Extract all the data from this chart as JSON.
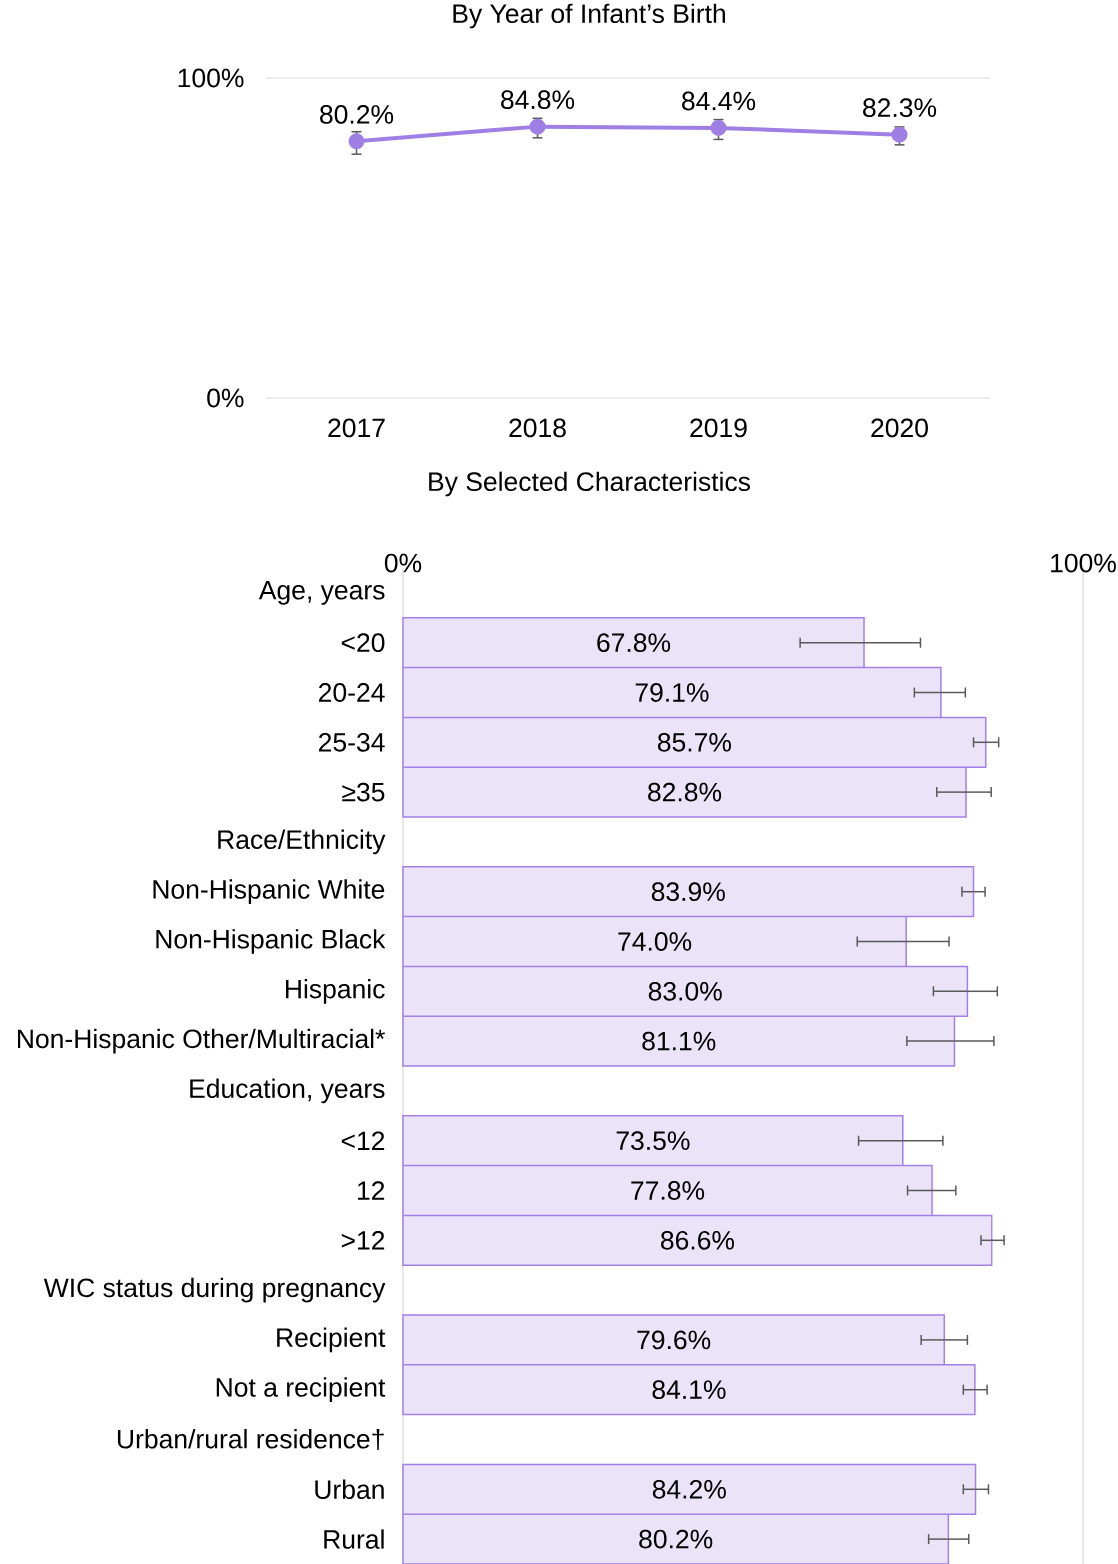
{
  "chart_data": [
    {
      "type": "line",
      "title": "By Year of Infant’s Birth",
      "categories": [
        "2017",
        "2018",
        "2019",
        "2020"
      ],
      "values": [
        80.2,
        84.8,
        84.4,
        82.3
      ],
      "errors": [
        [
          76.2,
          83.2
        ],
        [
          81.3,
          87.4
        ],
        [
          80.8,
          87.0
        ],
        [
          79.1,
          84.7
        ]
      ],
      "value_labels": [
        "80.2%",
        "84.8%",
        "84.4%",
        "82.3%"
      ],
      "color": "#9f7fe3",
      "marker": "circle",
      "line_style": "solid",
      "ylim": [
        0,
        100
      ],
      "yticks": [
        {
          "value": 0,
          "label": "0%"
        },
        {
          "value": 100,
          "label": "100%"
        }
      ]
    },
    {
      "type": "bar",
      "orientation": "horizontal",
      "title": "By Selected Characteristics",
      "categories": [
        "Age, years",
        "<20",
        "20-24",
        "25-34",
        "≥35",
        "Race/Ethnicity",
        "Non-Hispanic White",
        "Non-Hispanic Black",
        "Hispanic",
        "Non-Hispanic Other/Multiracial*",
        "Education, years",
        "<12",
        "12",
        ">12",
        "WIC status during pregnancy",
        "Recipient",
        "Not a recipient",
        "Urban/rural residence†",
        "Urban",
        "Rural"
      ],
      "values": [
        null,
        67.8,
        79.1,
        85.7,
        82.8,
        null,
        83.9,
        74.0,
        83.0,
        81.1,
        null,
        73.5,
        77.8,
        86.6,
        null,
        79.6,
        84.1,
        null,
        84.2,
        80.2
      ],
      "errors": [
        null,
        [
          58.4,
          76.1
        ],
        [
          75.2,
          82.7
        ],
        [
          83.9,
          87.6
        ],
        [
          78.5,
          86.5
        ],
        null,
        [
          82.2,
          85.6
        ],
        [
          66.8,
          80.3
        ],
        [
          78.0,
          87.4
        ],
        [
          74.1,
          86.9
        ],
        null,
        [
          67.0,
          79.4
        ],
        [
          74.2,
          81.3
        ],
        [
          85.0,
          88.4
        ],
        null,
        [
          76.2,
          83.0
        ],
        [
          82.4,
          85.9
        ],
        null,
        [
          82.4,
          86.1
        ],
        [
          77.3,
          83.2
        ]
      ],
      "value_labels": [
        null,
        "67.8%",
        "79.1%",
        "85.7%",
        "82.8%",
        null,
        "83.9%",
        "74.0%",
        "83.0%",
        "81.1%",
        null,
        "73.5%",
        "77.8%",
        "86.6%",
        null,
        "79.6%",
        "84.1%",
        null,
        "84.2%",
        "80.2%"
      ],
      "color": "#ebe4f8",
      "xlim": [
        0,
        100
      ],
      "xticks": [
        {
          "value": 0,
          "label": "0%"
        },
        {
          "value": 100,
          "label": "100%"
        }
      ]
    }
  ]
}
